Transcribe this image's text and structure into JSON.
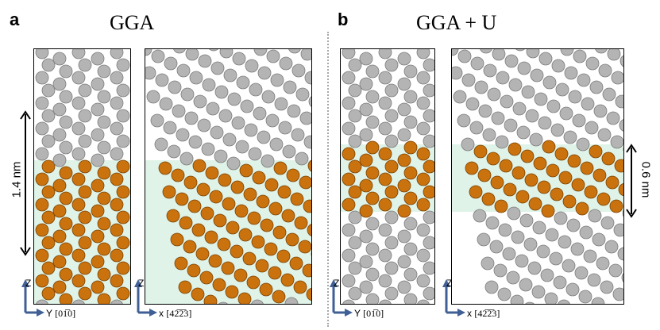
{
  "panels": [
    {
      "letter": "a",
      "title": "GGA",
      "thickness": "1.4 nm",
      "axis_left": {
        "z": "Z",
        "y": "Y",
        "dir": "[01̅0]"
      },
      "axis_right": {
        "z": "Z",
        "x": "x",
        "dir": "[42̅2̅3]"
      }
    },
    {
      "letter": "b",
      "title": "GGA + U",
      "thickness": "0.6 nm",
      "axis_left": {
        "z": "Z",
        "y": "Y",
        "dir": "[01̅0]"
      },
      "axis_right": {
        "z": "Z",
        "x": "x",
        "dir": "[42̅2̅3]"
      }
    }
  ],
  "colors": {
    "host_atom": "#b4b4b4",
    "layer_atom": "#c9720e",
    "layer_bg": "#dff3e8",
    "axis": "#3f5f95"
  }
}
